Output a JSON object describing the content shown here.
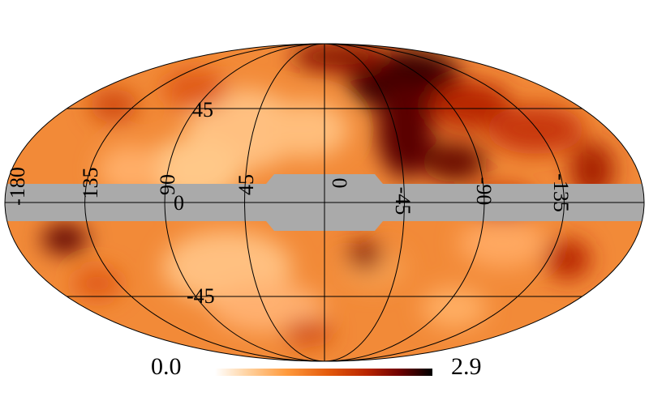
{
  "map": {
    "projection": "mollweide",
    "colormap": [
      "#ffffff",
      "#ffd2a0",
      "#ff9a3c",
      "#e45a0c",
      "#b82400",
      "#6e0000",
      "#000000"
    ],
    "mask_color": "#aaaaaa",
    "background_color": "#ffffff",
    "meridian_labels": [
      "-180",
      "135",
      "90",
      "45",
      "0",
      "-45",
      "-90",
      "-135"
    ],
    "parallel_labels": [
      "45",
      "0",
      "-45"
    ]
  },
  "colorbar": {
    "min_label": "0.0",
    "max_label": "2.9",
    "min": 0.0,
    "max": 2.9
  }
}
